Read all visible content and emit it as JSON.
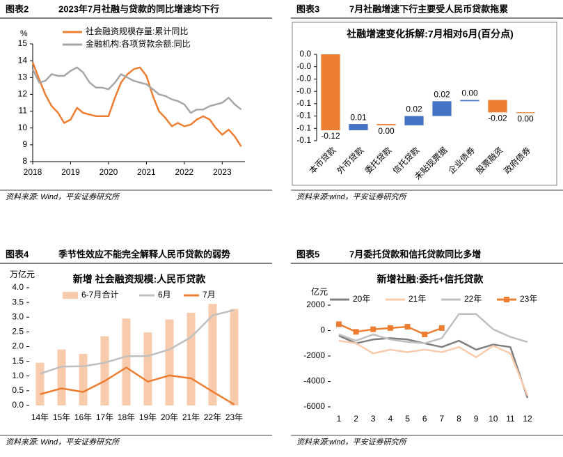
{
  "chart_data": [
    {
      "type": "line",
      "figure_label": "图表2",
      "title": "2023年7月社融与贷款的同比增速均下行",
      "y_label": "%",
      "source": "资料来源: Wind，平安证券研究所",
      "x": [
        2018,
        2018.17,
        2018.33,
        2018.5,
        2018.67,
        2018.83,
        2019,
        2019.17,
        2019.33,
        2019.5,
        2019.67,
        2019.83,
        2020,
        2020.17,
        2020.33,
        2020.5,
        2020.67,
        2020.83,
        2021,
        2021.17,
        2021.33,
        2021.5,
        2021.67,
        2021.83,
        2022,
        2022.17,
        2022.33,
        2022.5,
        2022.67,
        2022.83,
        2023,
        2023.17,
        2023.33,
        2023.5
      ],
      "series": [
        {
          "name": "社会融资规模存量:累计同比",
          "color": "#ED7D31",
          "values": [
            13.9,
            12.9,
            12.0,
            11.3,
            10.9,
            10.3,
            10.5,
            11.2,
            10.9,
            10.8,
            10.7,
            10.7,
            10.7,
            11.8,
            12.7,
            13.2,
            13.5,
            13.6,
            13.1,
            11.9,
            11.0,
            10.6,
            10.1,
            10.3,
            10.1,
            10.2,
            10.5,
            10.7,
            10.5,
            10.0,
            9.6,
            9.9,
            9.5,
            8.9
          ]
        },
        {
          "name": "金融机构:各项贷款余额:同比",
          "color": "#A6A6A6",
          "values": [
            13.5,
            12.7,
            12.8,
            13.2,
            13.1,
            13.1,
            13.4,
            13.6,
            13.3,
            12.7,
            12.4,
            12.4,
            12.3,
            12.7,
            13.2,
            13.0,
            12.8,
            12.7,
            12.6,
            12.3,
            12.0,
            11.9,
            11.7,
            11.6,
            11.4,
            10.9,
            11.1,
            11.1,
            11.3,
            11.4,
            11.5,
            11.8,
            11.4,
            11.1
          ]
        }
      ],
      "xlim": [
        2018,
        2023.6
      ],
      "xticks": [
        2018,
        2019,
        2020,
        2021,
        2022,
        2023
      ],
      "ylim": [
        8,
        15
      ],
      "yticks": [
        8,
        9,
        10,
        11,
        12,
        13,
        14,
        15
      ],
      "grid": false
    },
    {
      "type": "waterfall",
      "figure_label": "图表3",
      "title": "7月社融增速下行主要受人民币贷款拖累",
      "chart_title": "社融增速变化拆解:7月相对6月(百分点)",
      "source": "资料来源:wind，平安证券研究所",
      "categories": [
        "本币贷款",
        "外币贷款",
        "委托贷款",
        "信托贷款",
        "未贴现票据",
        "企业债券",
        "股票融资",
        "政府债券"
      ],
      "values": [
        -0.123,
        0.01,
        -0.002,
        0.015,
        0.024,
        0.002,
        -0.02,
        -0.001
      ],
      "value_labels": [
        "-0.12",
        "0.01",
        "0.00",
        "0.02",
        "0.02",
        "0.00",
        "-0.02",
        "0.00"
      ],
      "positive_color": "#4472C4",
      "negative_color": "#ED7D31",
      "ylim": [
        -0.14,
        0
      ],
      "yticks": [
        {
          "value": 0,
          "label": "0.0"
        },
        {
          "value": -0.02,
          "label": "-0.0"
        },
        {
          "value": -0.04,
          "label": "-0.0"
        },
        {
          "value": -0.06,
          "label": "-0.0"
        },
        {
          "value": -0.08,
          "label": "-0.1"
        },
        {
          "value": -0.1,
          "label": "-0.1"
        },
        {
          "value": -0.12,
          "label": "-0.1"
        },
        {
          "value": -0.14,
          "label": "-0.1"
        }
      ],
      "grid": false
    },
    {
      "type": "bar",
      "figure_label": "图表4",
      "title": "季节性效应不能完全解释人民币贷款的弱势",
      "chart_title": "新增 社会融资规模:人民币贷款",
      "y_label": "万亿元",
      "source": "资料来源: Wind，平安证券研究所",
      "categories": [
        "14年",
        "15年",
        "16年",
        "17年",
        "18年",
        "19年",
        "20年",
        "21年",
        "22年",
        "23年"
      ],
      "series": [
        {
          "name": "6-7月合计",
          "type": "bar",
          "color": "#F8CBAD",
          "values": [
            1.45,
            1.9,
            1.75,
            2.35,
            2.95,
            2.48,
            2.92,
            3.15,
            3.45,
            3.28
          ]
        },
        {
          "name": "6月",
          "type": "line",
          "color": "#BFBFBF",
          "values": [
            1.08,
            1.32,
            1.33,
            1.45,
            1.67,
            1.68,
            1.9,
            2.32,
            3.06,
            3.24
          ]
        },
        {
          "name": "7月",
          "type": "line",
          "color": "#ED7D31",
          "values": [
            0.38,
            0.58,
            0.46,
            0.83,
            1.29,
            0.81,
            1.02,
            0.92,
            0.47,
            0.03
          ]
        }
      ],
      "ylim": [
        0,
        4
      ],
      "yticks": [
        {
          "value": 0,
          "label": "0.0"
        },
        {
          "value": 0.5,
          "label": "0.5"
        },
        {
          "value": 1,
          "label": "1.0"
        },
        {
          "value": 1.5,
          "label": "1.5"
        },
        {
          "value": 2,
          "label": "2.0"
        },
        {
          "value": 2.5,
          "label": "2.5"
        },
        {
          "value": 3,
          "label": "3.0"
        },
        {
          "value": 3.5,
          "label": "3.5"
        },
        {
          "value": 4,
          "label": "4.0"
        }
      ],
      "grid": false
    },
    {
      "type": "line",
      "figure_label": "图表5",
      "title": "7月委托贷款和信托贷款同比多增",
      "chart_title": "新增社融:委托+信托贷款",
      "y_label": "亿元",
      "source": "资料来源:wind，平安证券研究所",
      "categories": [
        "1",
        "2",
        "3",
        "4",
        "5",
        "6",
        "7",
        "8",
        "9",
        "10",
        "11",
        "12"
      ],
      "series": [
        {
          "name": "20年",
          "color": "#7F7F7F",
          "values": [
            -400,
            -1000,
            -700,
            -600,
            -700,
            -1000,
            -1300,
            -800,
            -1500,
            -1100,
            -1300,
            -5300
          ]
        },
        {
          "name": "21年",
          "color": "#F8CBAD",
          "values": [
            -800,
            -1000,
            -1800,
            -1500,
            -1700,
            -1500,
            -1700,
            -1300,
            -2100,
            -1200,
            -1800,
            -5100
          ]
        },
        {
          "name": "22年",
          "color": "#BFBFBF",
          "values": [
            -300,
            -800,
            -300,
            -700,
            -900,
            -1000,
            -600,
            1300,
            1300,
            100,
            -500,
            -900
          ]
        },
        {
          "name": "23年",
          "color": "#ED7D31",
          "marker": "square",
          "values": [
            500,
            -100,
            100,
            200,
            300,
            -300,
            200,
            null,
            null,
            null,
            null,
            null
          ]
        }
      ],
      "ylim": [
        -6000,
        2000
      ],
      "yticks": [
        2000,
        0,
        -2000,
        -4000,
        -6000
      ],
      "grid": false
    }
  ]
}
